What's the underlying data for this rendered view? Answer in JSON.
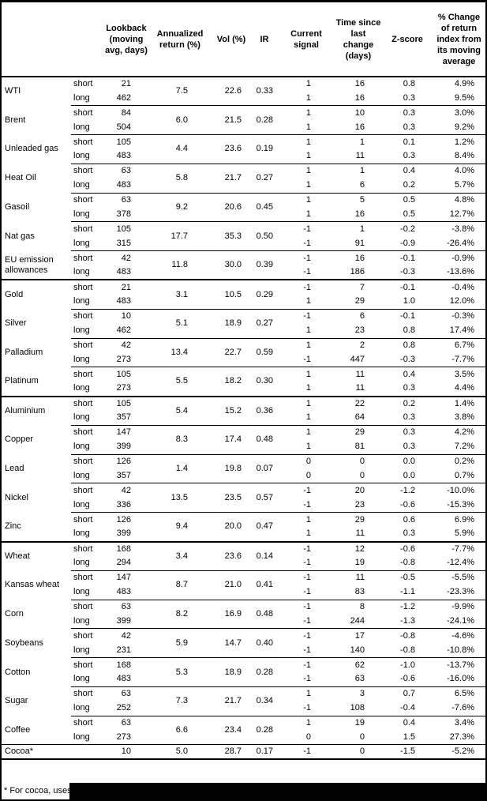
{
  "table": {
    "column_headers": [
      "",
      "",
      "Lookback (moving avg, days)",
      "Annualized return (%)",
      "Vol (%)",
      "IR",
      "Current signal",
      "Time since last change (days)",
      "Z-score",
      "% Change of return index from its moving average"
    ],
    "groups": [
      {
        "name": "WTI",
        "annualized_return": "7.5",
        "vol": "22.6",
        "ir": "0.33",
        "rows": [
          {
            "position": "short",
            "lookback": "21",
            "signal": "1",
            "days_since_change": "16",
            "z_score": "0.8",
            "pct_change": "4.9%"
          },
          {
            "position": "long",
            "lookback": "462",
            "signal": "1",
            "days_since_change": "16",
            "z_score": "0.3",
            "pct_change": "9.5%"
          }
        ]
      },
      {
        "name": "Brent",
        "annualized_return": "6.0",
        "vol": "21.5",
        "ir": "0.28",
        "rows": [
          {
            "position": "short",
            "lookback": "84",
            "signal": "1",
            "days_since_change": "10",
            "z_score": "0.3",
            "pct_change": "3.0%"
          },
          {
            "position": "long",
            "lookback": "504",
            "signal": "1",
            "days_since_change": "16",
            "z_score": "0.3",
            "pct_change": "9.2%"
          }
        ]
      },
      {
        "name": "Unleaded gas",
        "annualized_return": "4.4",
        "vol": "23.6",
        "ir": "0.19",
        "rows": [
          {
            "position": "short",
            "lookback": "105",
            "signal": "1",
            "days_since_change": "1",
            "z_score": "0.1",
            "pct_change": "1.2%"
          },
          {
            "position": "long",
            "lookback": "483",
            "signal": "1",
            "days_since_change": "11",
            "z_score": "0.3",
            "pct_change": "8.4%"
          }
        ]
      },
      {
        "name": "Heat Oil",
        "annualized_return": "5.8",
        "vol": "21.7",
        "ir": "0.27",
        "rows": [
          {
            "position": "short",
            "lookback": "63",
            "signal": "1",
            "days_since_change": "1",
            "z_score": "0.4",
            "pct_change": "4.0%"
          },
          {
            "position": "long",
            "lookback": "483",
            "signal": "1",
            "days_since_change": "6",
            "z_score": "0.2",
            "pct_change": "5.7%"
          }
        ]
      },
      {
        "name": "Gasoil",
        "annualized_return": "9.2",
        "vol": "20.6",
        "ir": "0.45",
        "rows": [
          {
            "position": "short",
            "lookback": "63",
            "signal": "1",
            "days_since_change": "5",
            "z_score": "0.5",
            "pct_change": "4.8%"
          },
          {
            "position": "long",
            "lookback": "378",
            "signal": "1",
            "days_since_change": "16",
            "z_score": "0.5",
            "pct_change": "12.7%"
          }
        ]
      },
      {
        "name": "Nat gas",
        "annualized_return": "17.7",
        "vol": "35.3",
        "ir": "0.50",
        "rows": [
          {
            "position": "short",
            "lookback": "105",
            "signal": "-1",
            "days_since_change": "1",
            "z_score": "-0.2",
            "pct_change": "-3.8%"
          },
          {
            "position": "long",
            "lookback": "315",
            "signal": "-1",
            "days_since_change": "91",
            "z_score": "-0.9",
            "pct_change": "-26.4%"
          }
        ]
      },
      {
        "name": "EU emission allowances",
        "annualized_return": "11.8",
        "vol": "30.0",
        "ir": "0.39",
        "rows": [
          {
            "position": "short",
            "lookback": "42",
            "signal": "-1",
            "days_since_change": "16",
            "z_score": "-0.1",
            "pct_change": "-0.9%"
          },
          {
            "position": "long",
            "lookback": "483",
            "signal": "-1",
            "days_since_change": "186",
            "z_score": "-0.3",
            "pct_change": "-13.6%"
          }
        ]
      },
      {
        "name": "Gold",
        "section_start": true,
        "annualized_return": "3.1",
        "vol": "10.5",
        "ir": "0.29",
        "rows": [
          {
            "position": "short",
            "lookback": "21",
            "signal": "-1",
            "days_since_change": "7",
            "z_score": "-0.1",
            "pct_change": "-0.4%"
          },
          {
            "position": "long",
            "lookback": "483",
            "signal": "1",
            "days_since_change": "29",
            "z_score": "1.0",
            "pct_change": "12.0%"
          }
        ]
      },
      {
        "name": "Silver",
        "annualized_return": "5.1",
        "vol": "18.9",
        "ir": "0.27",
        "rows": [
          {
            "position": "short",
            "lookback": "10",
            "signal": "-1",
            "days_since_change": "6",
            "z_score": "-0.1",
            "pct_change": "-0.3%"
          },
          {
            "position": "long",
            "lookback": "462",
            "signal": "1",
            "days_since_change": "23",
            "z_score": "0.8",
            "pct_change": "17.4%"
          }
        ]
      },
      {
        "name": "Palladium",
        "annualized_return": "13.4",
        "vol": "22.7",
        "ir": "0.59",
        "rows": [
          {
            "position": "short",
            "lookback": "42",
            "signal": "1",
            "days_since_change": "2",
            "z_score": "0.8",
            "pct_change": "6.7%"
          },
          {
            "position": "long",
            "lookback": "273",
            "signal": "-1",
            "days_since_change": "447",
            "z_score": "-0.3",
            "pct_change": "-7.7%"
          }
        ]
      },
      {
        "name": "Platinum",
        "annualized_return": "5.5",
        "vol": "18.2",
        "ir": "0.30",
        "rows": [
          {
            "position": "short",
            "lookback": "105",
            "signal": "1",
            "days_since_change": "11",
            "z_score": "0.4",
            "pct_change": "3.5%"
          },
          {
            "position": "long",
            "lookback": "273",
            "signal": "1",
            "days_since_change": "11",
            "z_score": "0.3",
            "pct_change": "4.4%"
          }
        ]
      },
      {
        "name": "Aluminium",
        "section_start": true,
        "annualized_return": "5.4",
        "vol": "15.2",
        "ir": "0.36",
        "rows": [
          {
            "position": "short",
            "lookback": "105",
            "signal": "1",
            "days_since_change": "22",
            "z_score": "0.2",
            "pct_change": "1.4%"
          },
          {
            "position": "long",
            "lookback": "357",
            "signal": "1",
            "days_since_change": "64",
            "z_score": "0.3",
            "pct_change": "3.8%"
          }
        ]
      },
      {
        "name": "Copper",
        "annualized_return": "8.3",
        "vol": "17.4",
        "ir": "0.48",
        "rows": [
          {
            "position": "short",
            "lookback": "147",
            "signal": "1",
            "days_since_change": "29",
            "z_score": "0.3",
            "pct_change": "4.2%"
          },
          {
            "position": "long",
            "lookback": "399",
            "signal": "1",
            "days_since_change": "81",
            "z_score": "0.3",
            "pct_change": "7.2%"
          }
        ]
      },
      {
        "name": "Lead",
        "annualized_return": "1.4",
        "vol": "19.8",
        "ir": "0.07",
        "rows": [
          {
            "position": "short",
            "lookback": "126",
            "signal": "0",
            "days_since_change": "0",
            "z_score": "0.0",
            "pct_change": "0.2%"
          },
          {
            "position": "long",
            "lookback": "357",
            "signal": "0",
            "days_since_change": "0",
            "z_score": "0.0",
            "pct_change": "0.7%"
          }
        ]
      },
      {
        "name": "Nickel",
        "annualized_return": "13.5",
        "vol": "23.5",
        "ir": "0.57",
        "rows": [
          {
            "position": "short",
            "lookback": "42",
            "signal": "-1",
            "days_since_change": "20",
            "z_score": "-1.2",
            "pct_change": "-10.0%"
          },
          {
            "position": "long",
            "lookback": "336",
            "signal": "-1",
            "days_since_change": "23",
            "z_score": "-0.6",
            "pct_change": "-15.3%"
          }
        ]
      },
      {
        "name": "Zinc",
        "annualized_return": "9.4",
        "vol": "20.0",
        "ir": "0.47",
        "rows": [
          {
            "position": "short",
            "lookback": "126",
            "signal": "1",
            "days_since_change": "29",
            "z_score": "0.6",
            "pct_change": "6.9%"
          },
          {
            "position": "long",
            "lookback": "399",
            "signal": "1",
            "days_since_change": "11",
            "z_score": "0.3",
            "pct_change": "5.9%"
          }
        ]
      },
      {
        "name": "Wheat",
        "section_start": true,
        "annualized_return": "3.4",
        "vol": "23.6",
        "ir": "0.14",
        "rows": [
          {
            "position": "short",
            "lookback": "168",
            "signal": "-1",
            "days_since_change": "12",
            "z_score": "-0.6",
            "pct_change": "-7.7%"
          },
          {
            "position": "long",
            "lookback": "294",
            "signal": "-1",
            "days_since_change": "19",
            "z_score": "-0.8",
            "pct_change": "-12.4%"
          }
        ]
      },
      {
        "name": "Kansas wheat",
        "annualized_return": "8.7",
        "vol": "21.0",
        "ir": "0.41",
        "rows": [
          {
            "position": "short",
            "lookback": "147",
            "signal": "-1",
            "days_since_change": "11",
            "z_score": "-0.5",
            "pct_change": "-5.5%"
          },
          {
            "position": "long",
            "lookback": "483",
            "signal": "-1",
            "days_since_change": "83",
            "z_score": "-1.1",
            "pct_change": "-23.3%"
          }
        ]
      },
      {
        "name": "Corn",
        "annualized_return": "8.2",
        "vol": "16.9",
        "ir": "0.48",
        "rows": [
          {
            "position": "short",
            "lookback": "63",
            "signal": "-1",
            "days_since_change": "8",
            "z_score": "-1.2",
            "pct_change": "-9.9%"
          },
          {
            "position": "long",
            "lookback": "399",
            "signal": "-1",
            "days_since_change": "244",
            "z_score": "-1.3",
            "pct_change": "-24.1%"
          }
        ]
      },
      {
        "name": "Soybeans",
        "annualized_return": "5.9",
        "vol": "14.7",
        "ir": "0.40",
        "rows": [
          {
            "position": "short",
            "lookback": "42",
            "signal": "-1",
            "days_since_change": "17",
            "z_score": "-0.8",
            "pct_change": "-4.6%"
          },
          {
            "position": "long",
            "lookback": "231",
            "signal": "-1",
            "days_since_change": "140",
            "z_score": "-0.8",
            "pct_change": "-10.8%"
          }
        ]
      },
      {
        "name": "Cotton",
        "annualized_return": "5.3",
        "vol": "18.9",
        "ir": "0.28",
        "rows": [
          {
            "position": "short",
            "lookback": "168",
            "signal": "-1",
            "days_since_change": "62",
            "z_score": "-1.0",
            "pct_change": "-13.7%"
          },
          {
            "position": "long",
            "lookback": "483",
            "signal": "-1",
            "days_since_change": "63",
            "z_score": "-0.6",
            "pct_change": "-16.0%"
          }
        ]
      },
      {
        "name": "Sugar",
        "annualized_return": "7.3",
        "vol": "21.7",
        "ir": "0.34",
        "rows": [
          {
            "position": "short",
            "lookback": "63",
            "signal": "1",
            "days_since_change": "3",
            "z_score": "0.7",
            "pct_change": "6.5%"
          },
          {
            "position": "long",
            "lookback": "252",
            "signal": "-1",
            "days_since_change": "108",
            "z_score": "-0.4",
            "pct_change": "-7.6%"
          }
        ]
      },
      {
        "name": "Coffee",
        "annualized_return": "6.6",
        "vol": "23.4",
        "ir": "0.28",
        "rows": [
          {
            "position": "short",
            "lookback": "63",
            "signal": "1",
            "days_since_change": "19",
            "z_score": "0.4",
            "pct_change": "3.4%"
          },
          {
            "position": "long",
            "lookback": "273",
            "signal": "0",
            "days_since_change": "0",
            "z_score": "1.5",
            "pct_change": "27.3%"
          }
        ]
      },
      {
        "name": "Cocoa*",
        "full_line": true,
        "annualized_return": "5.0",
        "vol": "28.7",
        "ir": "0.17",
        "rows": [
          {
            "position": "",
            "lookback": "10",
            "signal": "-1",
            "days_since_change": "0",
            "z_score": "-1.5",
            "pct_change": "-5.2%"
          }
        ]
      }
    ]
  },
  "footnote": {
    "text": "* For cocoa, uses o",
    "redacted": true
  },
  "colors": {
    "text": "#000000",
    "background": "#ffffff",
    "border": "#000000",
    "redaction_bar": "#000000"
  }
}
